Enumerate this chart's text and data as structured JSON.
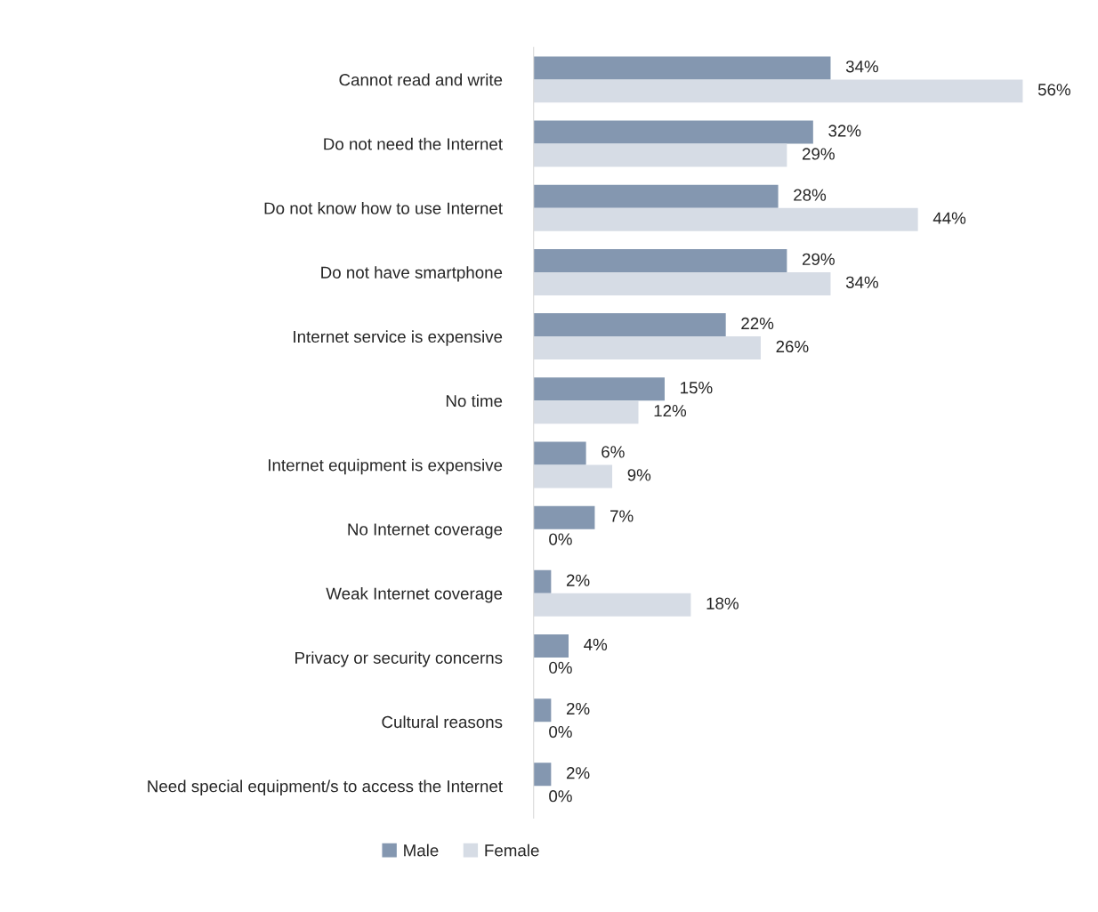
{
  "chart_data": {
    "type": "bar",
    "orientation": "horizontal",
    "legend": "bottom",
    "grid": false,
    "categories": [
      "Cannot read and write",
      "Do not need the Internet",
      "Do not know how to use Internet",
      "Do not have smartphone",
      "Internet service is expensive",
      "No time",
      "Internet equipment is expensive",
      "No Internet coverage",
      "Weak Internet coverage",
      "Privacy or security concerns",
      "Cultural reasons",
      "Need special equipment/s to access the Internet"
    ],
    "series": [
      {
        "name": "Male",
        "color": "#8497b0",
        "values": [
          34,
          32,
          28,
          29,
          22,
          15,
          6,
          7,
          2,
          4,
          2,
          2
        ],
        "value_labels": [
          "34%",
          "32%",
          "28%",
          "29%",
          "22%",
          "15%",
          "6%",
          "7%",
          "2%",
          "4%",
          "2%",
          "2%"
        ]
      },
      {
        "name": "Female",
        "color": "#d6dce5",
        "values": [
          56,
          29,
          44,
          34,
          26,
          12,
          9,
          0,
          18,
          0,
          0,
          0
        ],
        "value_labels": [
          "56%",
          "29%",
          "44%",
          "34%",
          "26%",
          "12%",
          "9%",
          "0%",
          "18%",
          "0%",
          "0%",
          "0%"
        ]
      }
    ]
  }
}
